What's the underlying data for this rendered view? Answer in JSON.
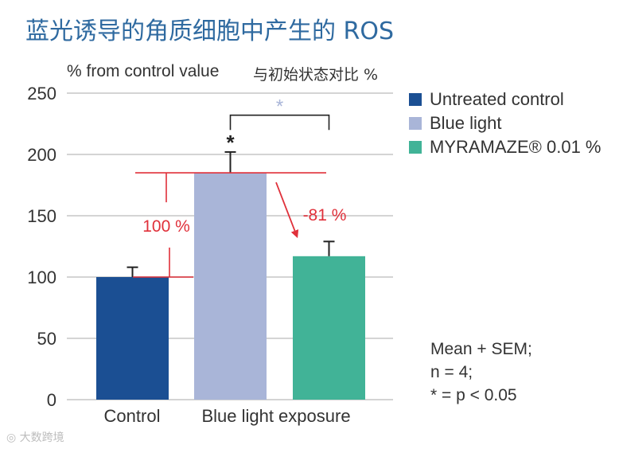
{
  "title": "蓝光诱导的角质细胞中产生的 ROS",
  "watermark": "大数跨境",
  "colors": {
    "untreated": "#1b4f93",
    "blue_light": "#a9b5d8",
    "myramaze": "#41b397",
    "annotation": "#e0303a",
    "significance": "#a9b5d8"
  },
  "chart_data": {
    "type": "bar",
    "title": "蓝光诱导的角质细胞中产生的 ROS",
    "ylabel": "% from control value",
    "ylabel_cn": "与初始状态对比 %",
    "ylim": [
      0,
      250
    ],
    "yticks": [
      0,
      50,
      100,
      150,
      200,
      250
    ],
    "grid": true,
    "categories": [
      "Control",
      "Blue light exposure"
    ],
    "bars": [
      {
        "series": "Untreated control",
        "category": "Control",
        "value": 100,
        "sem": 8,
        "color": "#1b4f93"
      },
      {
        "series": "Blue light",
        "category": "Blue light exposure",
        "value": 185,
        "sem": 17,
        "color": "#a9b5d8"
      },
      {
        "series": "MYRAMAZE® 0.01 %",
        "category": "Blue light exposure",
        "value": 117,
        "sem": 12,
        "color": "#41b397"
      }
    ],
    "legend": [
      {
        "label": "Untreated control",
        "color": "#1b4f93"
      },
      {
        "label": "Blue light",
        "color": "#a9b5d8"
      },
      {
        "label": "MYRAMAZE® 0.01 %",
        "color": "#41b397"
      }
    ],
    "annotations": {
      "star_blue_light": "*",
      "star_bracket": "*",
      "baseline_label": "100 %",
      "reduction_label": "-81 %"
    },
    "stats_note": [
      "Mean + SEM;",
      "n = 4;",
      "* = p < 0.05"
    ]
  }
}
